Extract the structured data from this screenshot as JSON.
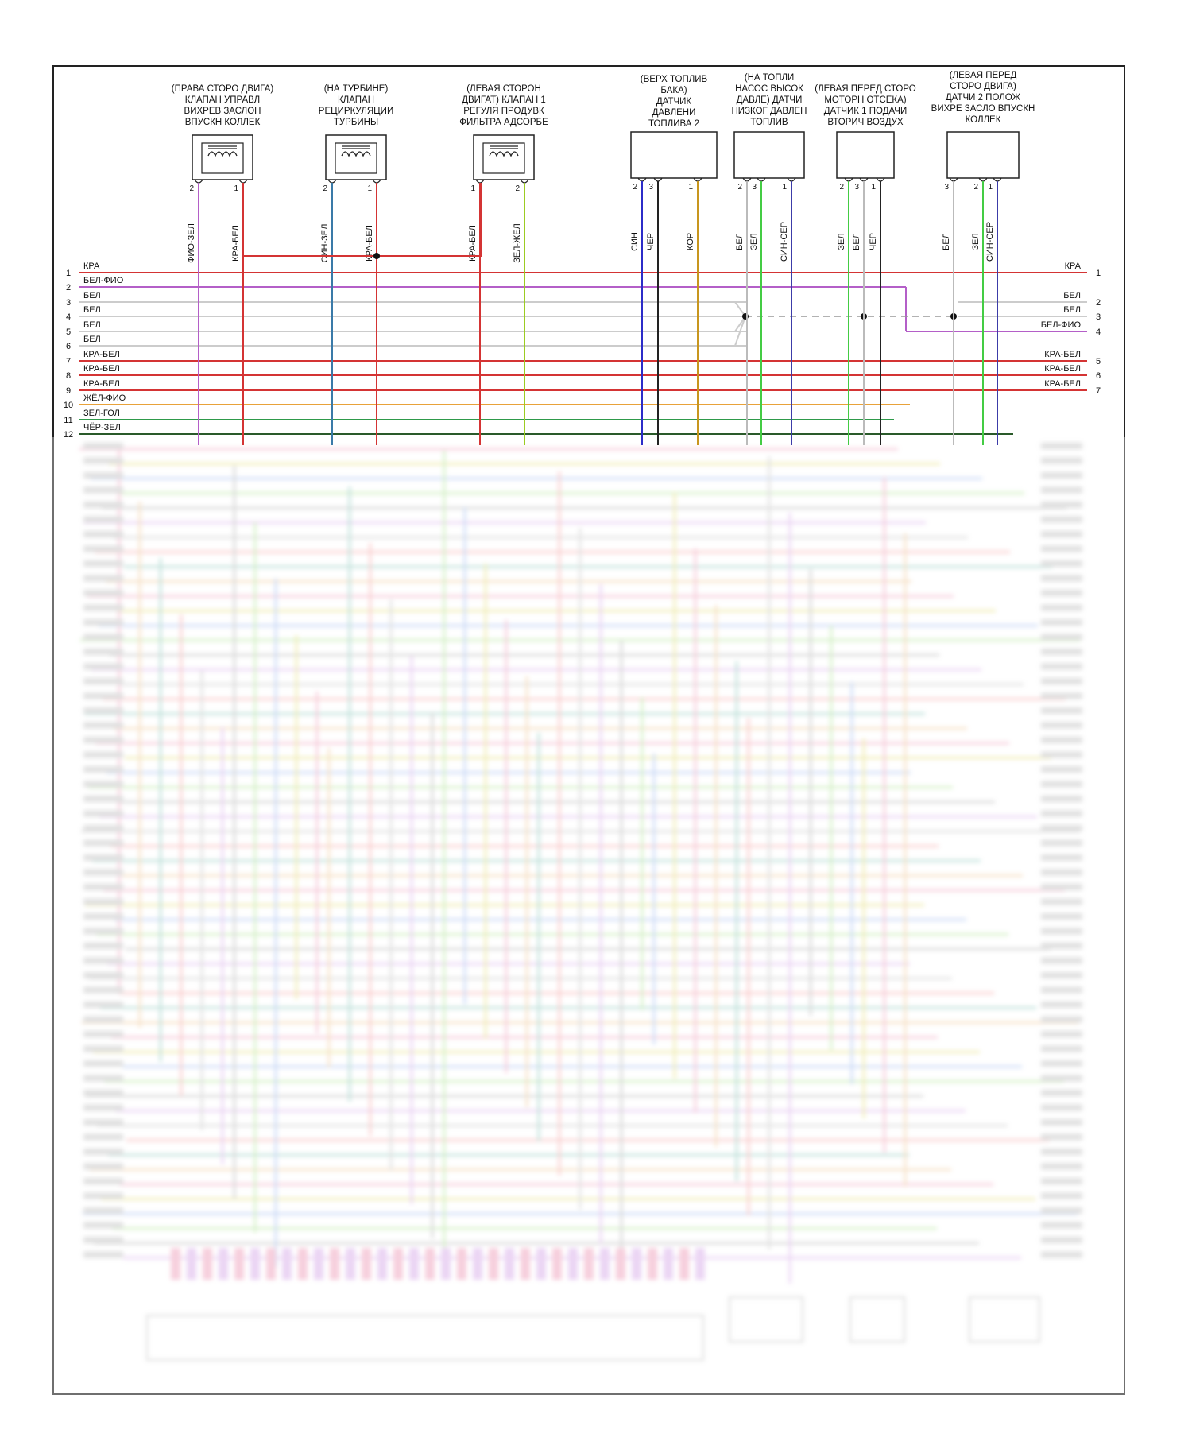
{
  "components": [
    {
      "id": "c1",
      "lines": [
        "(ПРАВА СТОРО ДВИГА)",
        "КЛАПАН УПРАВЛ",
        "ВИХРЕВ ЗАСЛОН",
        "ВПУСКН КОЛЛЕК"
      ],
      "type": "solenoid",
      "pins": [
        {
          "num": "2",
          "wire": "ФИО-ЗЕЛ",
          "color": "#b45fc8"
        },
        {
          "num": "1",
          "wire": "КРА-БЕЛ",
          "color": "#d43434"
        }
      ]
    },
    {
      "id": "c2",
      "lines": [
        "(НА ТУРБИНЕ)",
        "КЛАПАН",
        "РЕЦИРКУЛЯЦИИ",
        "ТУРБИНЫ"
      ],
      "type": "solenoid",
      "pins": [
        {
          "num": "2",
          "wire": "СИН-ЗЕЛ",
          "color": "#3a7aa8"
        },
        {
          "num": "1",
          "wire": "КРА-БЕЛ",
          "color": "#d43434"
        }
      ]
    },
    {
      "id": "c3",
      "lines": [
        "(ЛЕВАЯ СТОРОН",
        "ДВИГАТ) КЛАПАН 1",
        "РЕГУЛЯ ПРОДУВК",
        "ФИЛЬТРА АДСОРБЕ"
      ],
      "type": "solenoid",
      "pins": [
        {
          "num": "1",
          "wire": "КРА-БЕЛ",
          "color": "#d43434"
        },
        {
          "num": "2",
          "wire": "ЗЕЛ-ЖЕЛ",
          "color": "#9ccc22"
        }
      ]
    },
    {
      "id": "c4",
      "lines": [
        "(ВЕРХ ТОПЛИВ",
        "БАКА)",
        "ДАТЧИК",
        "ДАВЛЕНИ",
        "ТОПЛИВА 2"
      ],
      "type": "sensor",
      "pins": [
        {
          "num": "2",
          "wire": "СИН",
          "color": "#2c2cc8"
        },
        {
          "num": "3",
          "wire": "ЧЕР",
          "color": "#222222"
        },
        {
          "num": "1",
          "wire": "КОР",
          "color": "#c8961e"
        }
      ]
    },
    {
      "id": "c5",
      "lines": [
        "(НА ТОПЛИ",
        "НАСОС ВЫСОК",
        "ДАВЛЕ) ДАТЧИ",
        "НИЗКОГ ДАВЛЕН",
        "ТОПЛИВ"
      ],
      "type": "sensor",
      "pins": [
        {
          "num": "2",
          "wire": "БЕЛ",
          "color": "#bbbbbb"
        },
        {
          "num": "3",
          "wire": "ЗЕЛ",
          "color": "#44cc44"
        },
        {
          "num": "1",
          "wire": "СИН-СЕР",
          "color": "#3c3ca8"
        }
      ]
    },
    {
      "id": "c6",
      "lines": [
        "(ЛЕВАЯ ПЕРЕД СТОРО",
        "МОТОРН ОТСЕКА)",
        "ДАТЧИК 1 ПОДАЧИ",
        "ВТОРИЧ ВОЗДУХ"
      ],
      "type": "sensor",
      "pins": [
        {
          "num": "2",
          "wire": "ЗЕЛ",
          "color": "#44cc44"
        },
        {
          "num": "3",
          "wire": "БЕЛ",
          "color": "#bbbbbb"
        },
        {
          "num": "1",
          "wire": "ЧЕР",
          "color": "#222222"
        }
      ]
    },
    {
      "id": "c7",
      "lines": [
        "(ЛЕВАЯ ПЕРЕД",
        "СТОРО ДВИГА)",
        "ДАТЧИ 2 ПОЛОЖ",
        "ВИХРЕ ЗАСЛО ВПУСКН",
        "КОЛЛЕК"
      ],
      "type": "sensor",
      "pins": [
        {
          "num": "3",
          "wire": "БЕЛ",
          "color": "#bbbbbb"
        },
        {
          "num": "2",
          "wire": "ЗЕЛ",
          "color": "#44cc44"
        },
        {
          "num": "1",
          "wire": "СИН-СЕР",
          "color": "#3c3ca8"
        }
      ]
    }
  ],
  "left_rows": [
    {
      "num": "1",
      "label": "КРА",
      "color": "#d43434"
    },
    {
      "num": "2",
      "label": "БЕЛ-ФИО",
      "color": "#b45fc8"
    },
    {
      "num": "3",
      "label": "БЕЛ",
      "color": "#cccccc"
    },
    {
      "num": "4",
      "label": "БЕЛ",
      "color": "#cccccc"
    },
    {
      "num": "5",
      "label": "БЕЛ",
      "color": "#cccccc"
    },
    {
      "num": "6",
      "label": "БЕЛ",
      "color": "#cccccc"
    },
    {
      "num": "7",
      "label": "КРА-БЕЛ",
      "color": "#d43434"
    },
    {
      "num": "8",
      "label": "КРА-БЕЛ",
      "color": "#d43434"
    },
    {
      "num": "9",
      "label": "КРА-БЕЛ",
      "color": "#d43434"
    },
    {
      "num": "10",
      "label": "ЖЁЛ-ФИО",
      "color": "#e8a23a"
    },
    {
      "num": "11",
      "label": "ЗЕЛ-ГОЛ",
      "color": "#2e9a4a"
    },
    {
      "num": "12",
      "label": "ЧЁР-ЗЕЛ",
      "color": "#2a5a2a"
    }
  ],
  "right_rows": [
    {
      "num": "1",
      "label": "КРА"
    },
    {
      "num": "2",
      "label": "БЕЛ"
    },
    {
      "num": "3",
      "label": "БЕЛ"
    },
    {
      "num": "4",
      "label": "БЕЛ-ФИО"
    },
    {
      "num": "5",
      "label": "КРА-БЕЛ"
    },
    {
      "num": "6",
      "label": "КРА-БЕЛ"
    },
    {
      "num": "7",
      "label": "КРА-БЕЛ"
    }
  ]
}
